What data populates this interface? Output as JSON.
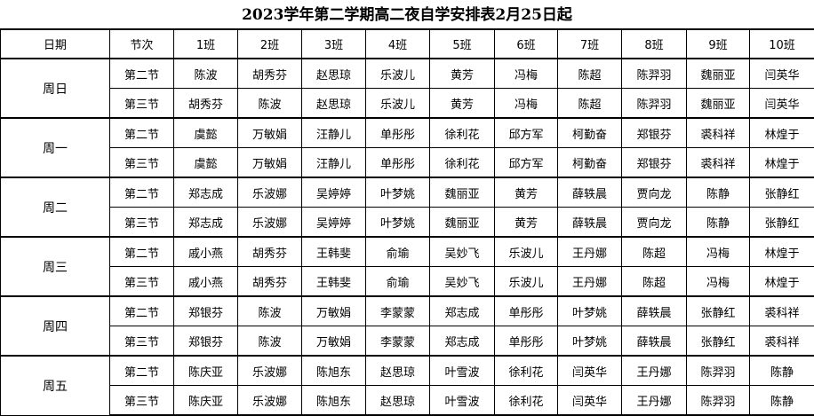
{
  "title": "2023学年第二学期高二夜自学安排表2月25日起",
  "headers": [
    "日期",
    "节次",
    "1班",
    "2班",
    "3班",
    "4班",
    "5班",
    "6班",
    "7班",
    "8班",
    "9班",
    "10班"
  ],
  "days": [
    {
      "day": "周日",
      "periods": [
        {
          "period": "第二节",
          "teachers": [
            "陈波",
            "胡秀芬",
            "赵思琼",
            "乐波儿",
            "黄芳",
            "冯梅",
            "陈超",
            "陈羿羽",
            "魏丽亚",
            "闫英华"
          ]
        },
        {
          "period": "第三节",
          "teachers": [
            "胡秀芬",
            "陈波",
            "赵思琼",
            "乐波儿",
            "黄芳",
            "冯梅",
            "陈超",
            "陈羿羽",
            "魏丽亚",
            "闫英华"
          ]
        }
      ]
    },
    {
      "day": "周一",
      "periods": [
        {
          "period": "第二节",
          "teachers": [
            "虞懿",
            "万敏娟",
            "汪静儿",
            "单彤彤",
            "徐利花",
            "邱方军",
            "柯勤奋",
            "郑银芬",
            "裘科祥",
            "林煌于"
          ]
        },
        {
          "period": "第三节",
          "teachers": [
            "虞懿",
            "万敏娟",
            "汪静儿",
            "单彤彤",
            "徐利花",
            "邱方军",
            "柯勤奋",
            "郑银芬",
            "裘科祥",
            "林煌于"
          ]
        }
      ]
    },
    {
      "day": "周二",
      "periods": [
        {
          "period": "第二节",
          "teachers": [
            "郑志成",
            "乐波娜",
            "吴婷婷",
            "叶梦姚",
            "魏丽亚",
            "黄芳",
            "薛轶晨",
            "贾向龙",
            "陈静",
            "张静红"
          ]
        },
        {
          "period": "第三节",
          "teachers": [
            "郑志成",
            "乐波娜",
            "吴婷婷",
            "叶梦姚",
            "魏丽亚",
            "黄芳",
            "薛轶晨",
            "贾向龙",
            "陈静",
            "张静红"
          ]
        }
      ]
    },
    {
      "day": "周三",
      "periods": [
        {
          "period": "第二节",
          "teachers": [
            "戚小燕",
            "胡秀芬",
            "王韩斐",
            "俞瑜",
            "吴妙飞",
            "乐波儿",
            "王丹娜",
            "陈超",
            "冯梅",
            "林煌于"
          ]
        },
        {
          "period": "第三节",
          "teachers": [
            "戚小燕",
            "胡秀芬",
            "王韩斐",
            "俞瑜",
            "吴妙飞",
            "乐波儿",
            "王丹娜",
            "陈超",
            "冯梅",
            "林煌于"
          ]
        }
      ]
    },
    {
      "day": "周四",
      "periods": [
        {
          "period": "第二节",
          "teachers": [
            "郑银芬",
            "陈波",
            "万敏娟",
            "李蒙蒙",
            "郑志成",
            "单彤彤",
            "叶梦姚",
            "薛轶晨",
            "张静红",
            "裘科祥"
          ]
        },
        {
          "period": "第三节",
          "teachers": [
            "郑银芬",
            "陈波",
            "万敏娟",
            "李蒙蒙",
            "郑志成",
            "单彤彤",
            "叶梦姚",
            "薛轶晨",
            "张静红",
            "裘科祥"
          ]
        }
      ]
    },
    {
      "day": "周五",
      "periods": [
        {
          "period": "第二节",
          "teachers": [
            "陈庆亚",
            "乐波娜",
            "陈旭东",
            "赵思琼",
            "叶雪波",
            "徐利花",
            "闫英华",
            "王丹娜",
            "陈羿羽",
            "陈静"
          ]
        },
        {
          "period": "第三节",
          "teachers": [
            "陈庆亚",
            "乐波娜",
            "陈旭东",
            "赵思琼",
            "叶雪波",
            "徐利花",
            "闫英华",
            "王丹娜",
            "陈羿羽",
            "陈静"
          ]
        }
      ]
    }
  ]
}
